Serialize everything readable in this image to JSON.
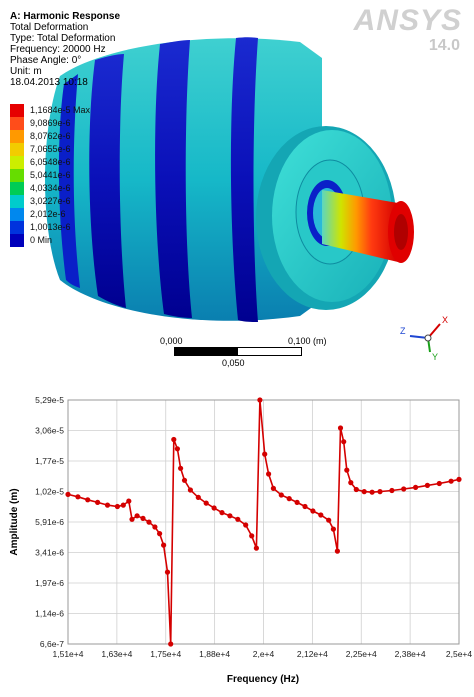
{
  "viewport": {
    "header": {
      "title": "A: Harmonic Response",
      "lines": [
        "Total Deformation",
        "Type: Total Deformation",
        "Frequency: 20000 Hz",
        "Phase Angle: 0°",
        "Unit: m",
        "18.04.2013 10:18"
      ]
    },
    "brand": {
      "name": "ANSYS",
      "version": "14.0"
    },
    "legend": [
      {
        "label": "1,1684e-5 Max",
        "color": "#e60000"
      },
      {
        "label": "9,0869e-6",
        "color": "#ff4d1a"
      },
      {
        "label": "8,0762e-6",
        "color": "#ff9900"
      },
      {
        "label": "7,0655e-6",
        "color": "#f2cc00"
      },
      {
        "label": "6,0548e-6",
        "color": "#ccee00"
      },
      {
        "label": "5,0441e-6",
        "color": "#66dd00"
      },
      {
        "label": "4,0334e-6",
        "color": "#00cc55"
      },
      {
        "label": "3,0227e-6",
        "color": "#00cccc"
      },
      {
        "label": "2,012e-6",
        "color": "#0088ee"
      },
      {
        "label": "1,0013e-6",
        "color": "#0033dd"
      },
      {
        "label": "0 Min",
        "color": "#0000bb"
      }
    ],
    "scale": {
      "left": "0,000",
      "right": "0,100 (m)",
      "middle": "0,050"
    },
    "triad": {
      "x": "X",
      "y": "Y",
      "z": "Z"
    }
  },
  "chart_data": {
    "type": "line",
    "title": "",
    "xlabel": "Frequency (Hz)",
    "ylabel": "Amplitude (m)",
    "x_ticks": [
      "1,51e+4",
      "1,63e+4",
      "1,75e+4",
      "1,88e+4",
      "2,e+4",
      "2,12e+4",
      "2,25e+4",
      "2,38e+4",
      "2,5e+4"
    ],
    "y_ticks": [
      "6,6e-7",
      "1,14e-6",
      "1,97e-6",
      "3,41e-6",
      "5,91e-6",
      "1,02e-5",
      "1,77e-5",
      "3,06e-5",
      "5,29e-5"
    ],
    "scale": "log",
    "xlim": [
      15100,
      25000
    ],
    "ylim": [
      6.6e-07,
      5.29e-05
    ],
    "grid": true,
    "series": [
      {
        "color": "#d40000",
        "points": [
          [
            15100,
            9.7e-06
          ],
          [
            15350,
            9.3e-06
          ],
          [
            15600,
            8.8e-06
          ],
          [
            15850,
            8.4e-06
          ],
          [
            16100,
            8e-06
          ],
          [
            16350,
            7.8e-06
          ],
          [
            16500,
            8e-06
          ],
          [
            16640,
            8.6e-06
          ],
          [
            16720,
            6.2e-06
          ],
          [
            16850,
            6.6e-06
          ],
          [
            17000,
            6.3e-06
          ],
          [
            17150,
            5.9e-06
          ],
          [
            17300,
            5.4e-06
          ],
          [
            17420,
            4.8e-06
          ],
          [
            17520,
            3.9e-06
          ],
          [
            17620,
            2.4e-06
          ],
          [
            17700,
            6.6e-07
          ],
          [
            17780,
            2.6e-05
          ],
          [
            17870,
            2.2e-05
          ],
          [
            17950,
            1.55e-05
          ],
          [
            18050,
            1.25e-05
          ],
          [
            18200,
            1.05e-05
          ],
          [
            18400,
            9.2e-06
          ],
          [
            18600,
            8.3e-06
          ],
          [
            18800,
            7.6e-06
          ],
          [
            19000,
            7e-06
          ],
          [
            19200,
            6.6e-06
          ],
          [
            19400,
            6.2e-06
          ],
          [
            19600,
            5.6e-06
          ],
          [
            19750,
            4.6e-06
          ],
          [
            19870,
            3.7e-06
          ],
          [
            19960,
            5.29e-05
          ],
          [
            20080,
            2e-05
          ],
          [
            20180,
            1.4e-05
          ],
          [
            20300,
            1.08e-05
          ],
          [
            20500,
            9.6e-06
          ],
          [
            20700,
            9e-06
          ],
          [
            20900,
            8.4e-06
          ],
          [
            21100,
            7.8e-06
          ],
          [
            21300,
            7.2e-06
          ],
          [
            21500,
            6.7e-06
          ],
          [
            21700,
            6.1e-06
          ],
          [
            21820,
            5.2e-06
          ],
          [
            21920,
            3.5e-06
          ],
          [
            22000,
            3.2e-05
          ],
          [
            22080,
            2.5e-05
          ],
          [
            22160,
            1.5e-05
          ],
          [
            22260,
            1.2e-05
          ],
          [
            22400,
            1.06e-05
          ],
          [
            22600,
            1.02e-05
          ],
          [
            22800,
            1.01e-05
          ],
          [
            23000,
            1.02e-05
          ],
          [
            23300,
            1.04e-05
          ],
          [
            23600,
            1.07e-05
          ],
          [
            23900,
            1.1e-05
          ],
          [
            24200,
            1.14e-05
          ],
          [
            24500,
            1.18e-05
          ],
          [
            24800,
            1.23e-05
          ],
          [
            25000,
            1.27e-05
          ]
        ]
      }
    ]
  }
}
